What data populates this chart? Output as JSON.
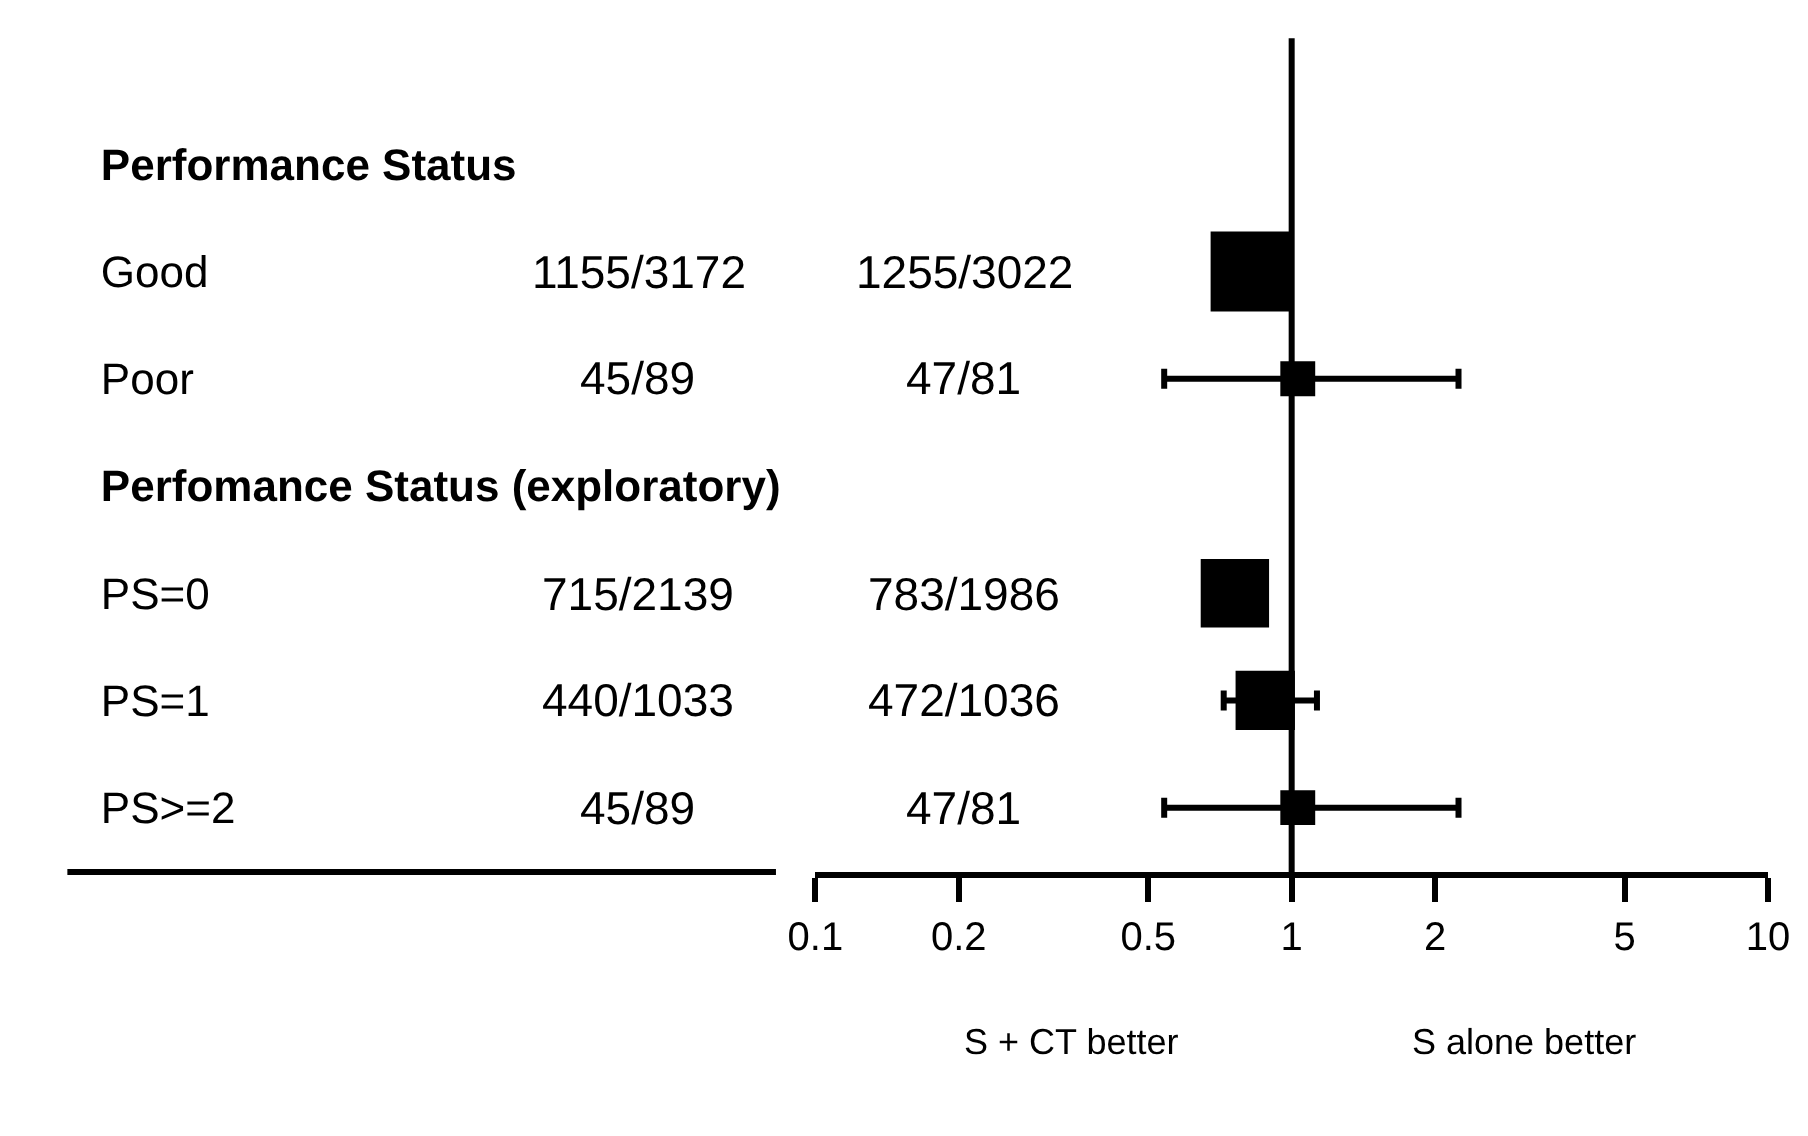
{
  "chart_data": {
    "type": "bubble",
    "marker": "square",
    "categories": [
      "Performance Status",
      "Good",
      "Poor",
      "Perfomance Status (exploratory)",
      "PS=0",
      "PS=1",
      "PS>=2"
    ],
    "series": [
      {
        "color": "#000000",
        "values": [
          null,
          0.82,
          1.03,
          null,
          0.76,
          0.88,
          1.03
        ],
        "sizes": [
          null,
          1,
          0.19,
          null,
          0.73,
          0.55,
          0.19
        ],
        "errors": [
          null,
          null,
          [
            0.54,
            2.24
          ],
          null,
          null,
          [
            0.72,
            1.13
          ],
          [
            0.54,
            2.24
          ]
        ]
      }
    ],
    "orientation": "horizontal",
    "log": "x",
    "xlim": [
      0.1,
      10
    ],
    "xticks": [
      0.1,
      0.2,
      0.5,
      1,
      2,
      5,
      10
    ],
    "ref_lines": [
      {
        "axis": "x",
        "value": 1,
        "color": "#000000",
        "line_style": "solid"
      }
    ],
    "annotations": [
      "1155/3172",
      "1255/3022",
      "45/89",
      "47/81",
      "715/2139",
      "783/1986",
      "440/1033",
      "472/1036",
      "45/89",
      "47/81",
      "S + CT better",
      "S alone better"
    ]
  }
}
